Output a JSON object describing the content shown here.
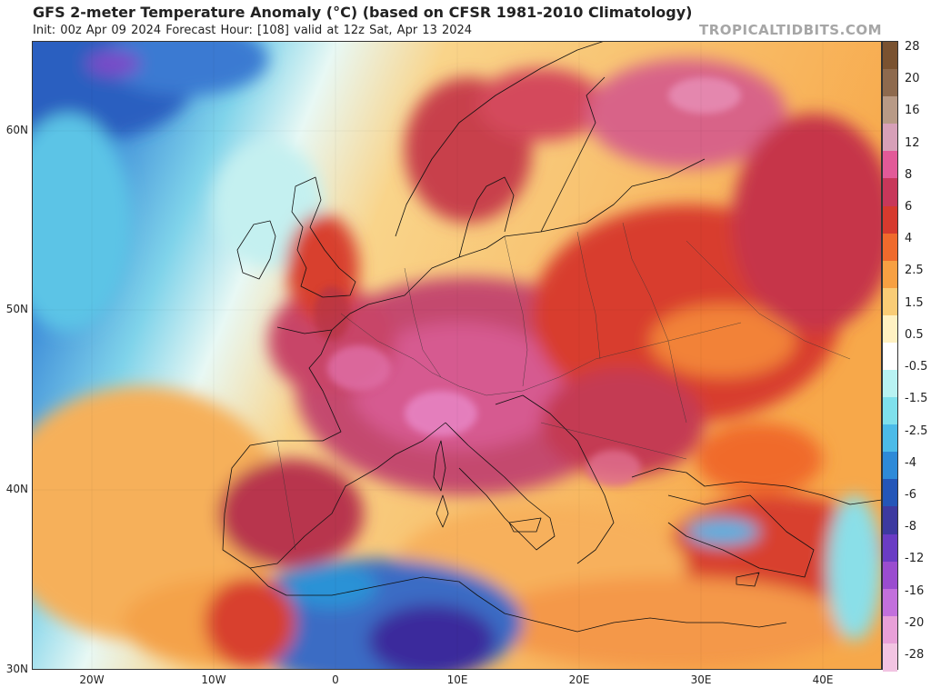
{
  "header": {
    "title": "GFS 2-meter Temperature Anomaly (°C) (based on CFSR 1981-2010 Climatology)",
    "subtitle": "Init: 00z Apr 09 2024   Forecast Hour: [108]   valid at 12z Sat, Apr 13 2024",
    "brand": "TROPICALTIDBITS.COM"
  },
  "map": {
    "lat_labels": [
      "60N",
      "50N",
      "40N",
      "30N"
    ],
    "lon_labels": [
      "20W",
      "10W",
      "0",
      "10E",
      "20E",
      "30E",
      "40E"
    ]
  },
  "colorbar": {
    "labels": [
      "28",
      "20",
      "16",
      "12",
      "8",
      "6",
      "4",
      "2.5",
      "1.5",
      "0.5",
      "-0.5",
      "-1.5",
      "-2.5",
      "-4",
      "-6",
      "-8",
      "-12",
      "-16",
      "-20",
      "-28"
    ],
    "colors": [
      "#7a5230",
      "#8e6a4e",
      "#b89a86",
      "#d7a0b8",
      "#e25a98",
      "#c8375a",
      "#d63a2e",
      "#ef6a2c",
      "#f7a042",
      "#f9cc76",
      "#fff1c2",
      "#ffffff",
      "#b8f2f2",
      "#7fe0ec",
      "#4cbbe8",
      "#2e8ad8",
      "#2456b8",
      "#3d3aa0",
      "#6a3cc4",
      "#9a4ccf",
      "#c270dc",
      "#e8a0d8",
      "#f2c4e2"
    ]
  }
}
